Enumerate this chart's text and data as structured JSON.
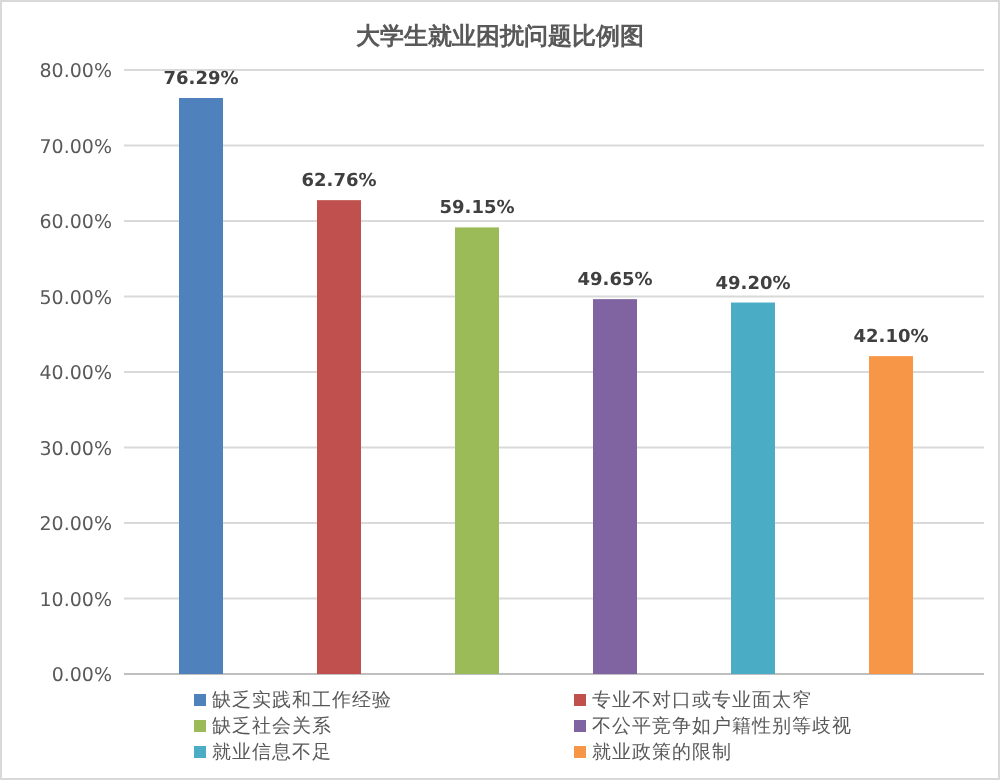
{
  "chart_data": {
    "type": "bar",
    "title": "大学生就业困扰问题比例图",
    "categories": [
      null
    ],
    "series": [
      {
        "name": "缺乏实践和工作经验",
        "color": "#4f81bd",
        "values": [
          76.29
        ],
        "value_labels": [
          "76.29%"
        ]
      },
      {
        "name": "专业不对口或专业面太窄",
        "color": "#c0504d",
        "values": [
          62.76
        ],
        "value_labels": [
          "62.76%"
        ]
      },
      {
        "name": "缺乏社会关系",
        "color": "#9bbb59",
        "values": [
          59.15
        ],
        "value_labels": [
          "59.15%"
        ]
      },
      {
        "name": "不公平竞争如户籍性别等歧视",
        "color": "#8064a2",
        "values": [
          49.65
        ],
        "value_labels": [
          "49.65%"
        ]
      },
      {
        "name": "就业信息不足",
        "color": "#4bacc6",
        "values": [
          49.2
        ],
        "value_labels": [
          "49.20%"
        ]
      },
      {
        "name": "就业政策的限制",
        "color": "#f79646",
        "values": [
          42.1
        ],
        "value_labels": [
          "42.10%"
        ]
      }
    ],
    "ylim": [
      0,
      80
    ],
    "yticks": [
      {
        "value": 0,
        "label": "0.00%"
      },
      {
        "value": 10,
        "label": "10.00%"
      },
      {
        "value": 20,
        "label": "20.00%"
      },
      {
        "value": 30,
        "label": "30.00%"
      },
      {
        "value": 40,
        "label": "40.00%"
      },
      {
        "value": 50,
        "label": "50.00%"
      },
      {
        "value": 60,
        "label": "60.00%"
      },
      {
        "value": 70,
        "label": "70.00%"
      },
      {
        "value": 80,
        "label": "80.00%"
      }
    ],
    "grid": "y",
    "legend": "bottom"
  }
}
